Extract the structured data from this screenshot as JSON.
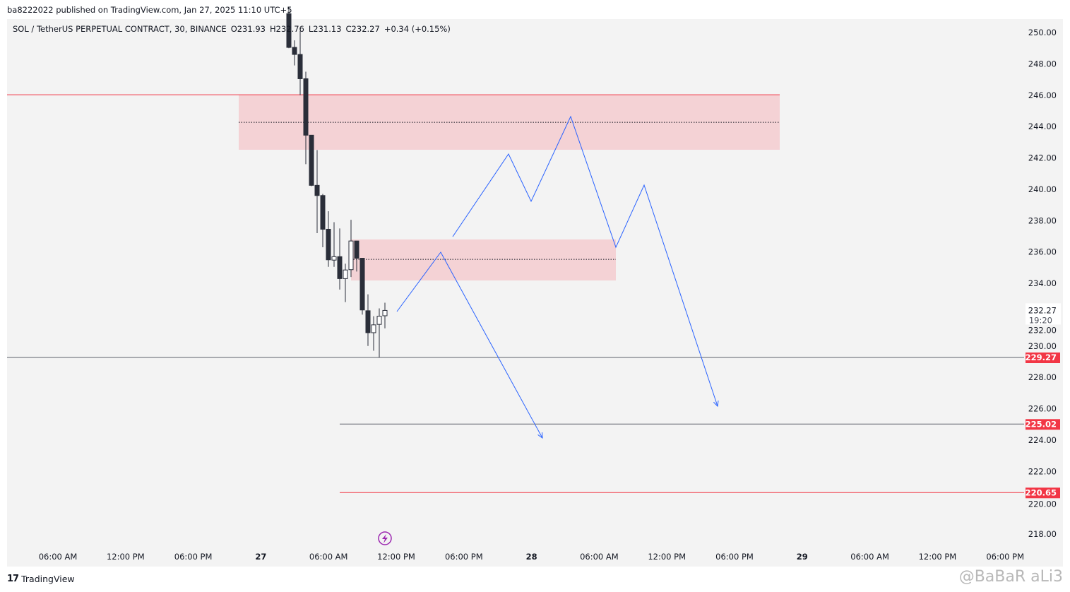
{
  "header": {
    "published": "ba8222022 published on TradingView.com, Jan 27, 2025 11:10 UTC+5"
  },
  "legend": {
    "symbol": "SOL / TetherUS PERPETUAL CONTRACT, 30, BINANCE",
    "open": "O231.93",
    "high": "H232.76",
    "low": "L231.13",
    "close": "C232.27",
    "change": "+0.34 (+0.15%)"
  },
  "footer": {
    "brand": "TradingView",
    "logo": "TV"
  },
  "watermark": "@BaBaR aLi3",
  "colors": {
    "bg": "#f3f3f3",
    "bear": "#2a2e39",
    "bull": "#ffffff",
    "zone": "#f4d2d5",
    "red": "#f23645",
    "drawing": "#2962ff",
    "line": "#5d606b"
  },
  "chart_data": {
    "type": "candlestick",
    "interval": "30",
    "ylim": [
      217,
      251
    ],
    "y_ticks": [
      "250.00",
      "248.00",
      "246.00",
      "244.00",
      "242.00",
      "240.00",
      "238.00",
      "236.00",
      "234.00",
      "232.00",
      "230.00",
      "228.00",
      "226.00",
      "224.00",
      "222.00",
      "220.00",
      "218.00"
    ],
    "x_ticks": [
      "06:00 AM",
      "12:00 PM",
      "06:00 PM",
      "27",
      "06:00 AM",
      "12:00 PM",
      "06:00 PM",
      "28",
      "06:00 AM",
      "12:00 PM",
      "06:00 PM",
      "29",
      "06:00 AM",
      "12:00 PM",
      "06:00 PM"
    ],
    "candles": [
      {
        "o": 251.2,
        "h": 251.6,
        "l": 249.0,
        "c": 249.05
      },
      {
        "o": 249.05,
        "h": 249.5,
        "l": 247.9,
        "c": 248.6
      },
      {
        "o": 248.6,
        "h": 250.1,
        "l": 246.0,
        "c": 247.05
      },
      {
        "o": 247.05,
        "h": 247.5,
        "l": 241.6,
        "c": 243.45
      },
      {
        "o": 243.45,
        "h": 243.45,
        "l": 240.2,
        "c": 240.25
      },
      {
        "o": 240.25,
        "h": 242.5,
        "l": 237.2,
        "c": 239.6
      },
      {
        "o": 239.6,
        "h": 239.7,
        "l": 236.3,
        "c": 237.45
      },
      {
        "o": 237.45,
        "h": 238.6,
        "l": 235.05,
        "c": 235.5
      },
      {
        "o": 235.48,
        "h": 237.9,
        "l": 235.05,
        "c": 235.7
      },
      {
        "o": 235.7,
        "h": 237.5,
        "l": 233.6,
        "c": 234.3
      },
      {
        "o": 234.3,
        "h": 235.25,
        "l": 232.8,
        "c": 234.85
      },
      {
        "o": 234.87,
        "h": 238.05,
        "l": 234.4,
        "c": 236.7
      },
      {
        "o": 236.7,
        "h": 236.7,
        "l": 234.75,
        "c": 235.6
      },
      {
        "o": 235.6,
        "h": 235.6,
        "l": 232.0,
        "c": 232.3
      },
      {
        "o": 232.25,
        "h": 233.3,
        "l": 230.0,
        "c": 230.85
      },
      {
        "o": 230.85,
        "h": 231.9,
        "l": 229.7,
        "c": 231.35
      },
      {
        "o": 231.38,
        "h": 232.4,
        "l": 229.27,
        "c": 231.9
      },
      {
        "o": 231.93,
        "h": 232.76,
        "l": 231.13,
        "c": 232.27
      }
    ],
    "zones": [
      {
        "top": 246.03,
        "bottom": 242.52,
        "mid": 244.27
      },
      {
        "top": 236.8,
        "bottom": 234.18,
        "mid": 235.53
      }
    ],
    "levels": [
      {
        "price": 246.03,
        "color": "#f23645"
      },
      {
        "price": 229.27,
        "label": "229.27",
        "color": "#5d606b"
      },
      {
        "price": 225.02,
        "label": "225.02",
        "color": "#5d606b"
      },
      {
        "price": 220.65,
        "label": "220.65",
        "color": "#f23645"
      }
    ],
    "last_price": {
      "price": 232.27,
      "label": "232.27",
      "countdown": "19:20"
    }
  }
}
